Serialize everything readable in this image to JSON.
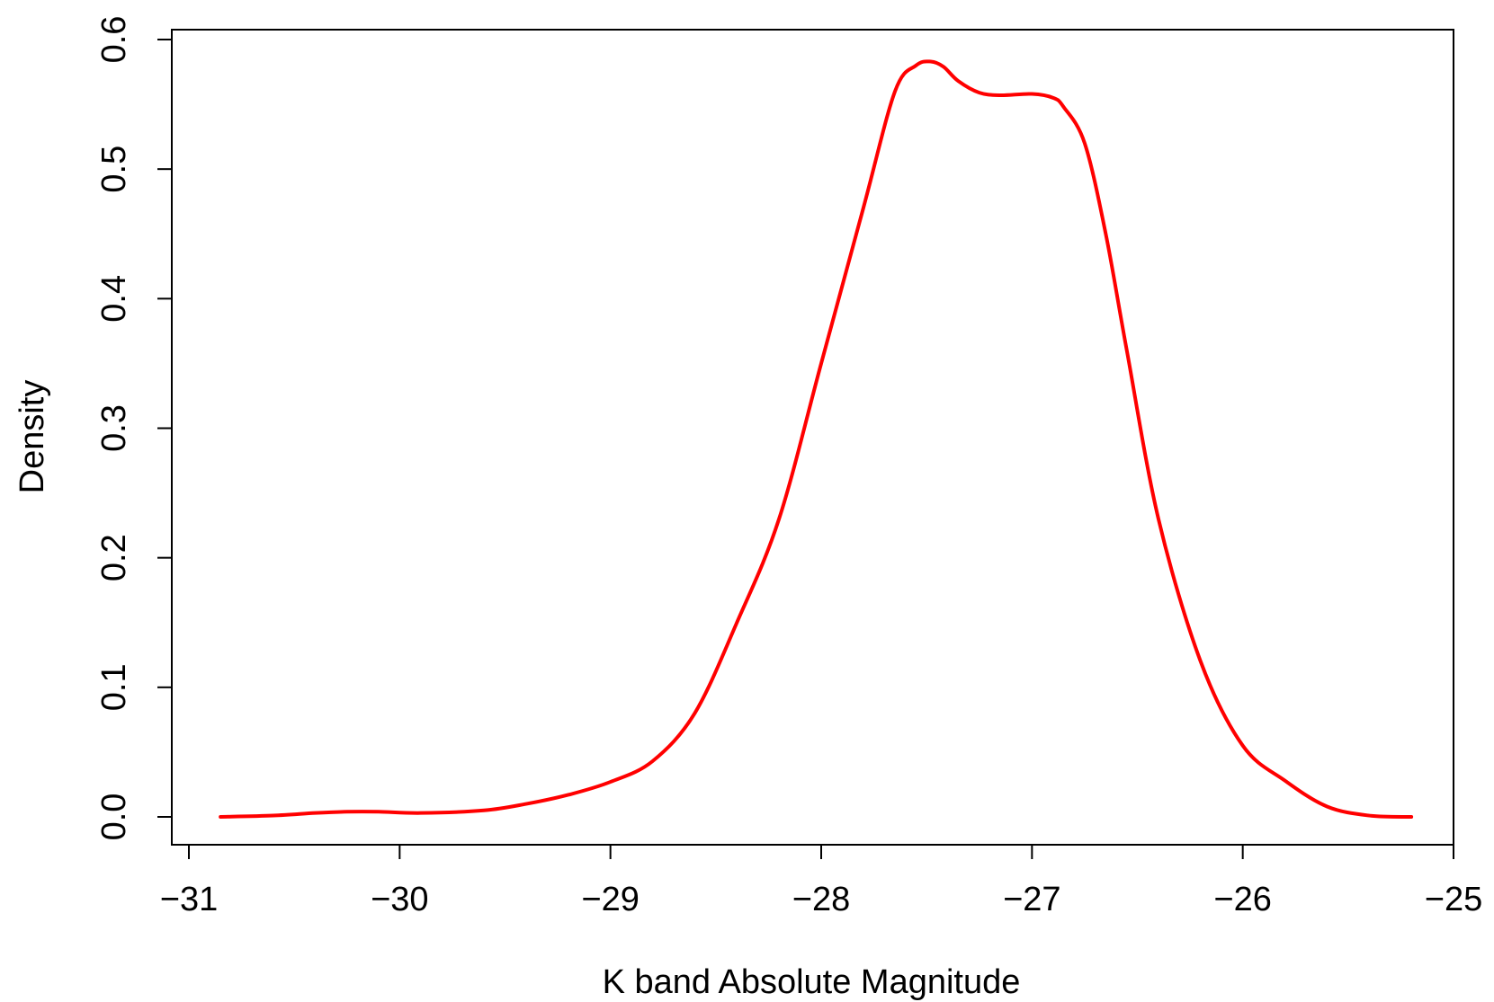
{
  "chart_data": {
    "type": "line",
    "title": "",
    "xlabel": "K band Absolute Magnitude",
    "ylabel": "Density",
    "xlim": [
      -31,
      -25
    ],
    "ylim": [
      0,
      0.6
    ],
    "x_ticks": [
      -31,
      -30,
      -29,
      -28,
      -27,
      -26,
      -25
    ],
    "y_ticks": [
      0.0,
      0.1,
      0.2,
      0.3,
      0.4,
      0.5,
      0.6
    ],
    "x_tick_labels": [
      "−31",
      "−30",
      "−29",
      "−28",
      "−27",
      "−26",
      "−25"
    ],
    "y_tick_labels": [
      "0.0",
      "0.1",
      "0.2",
      "0.3",
      "0.4",
      "0.5",
      "0.6"
    ],
    "grid": false,
    "legend": "none",
    "series": [
      {
        "color": "#ff0000",
        "x": [
          -30.85,
          -30.6,
          -30.4,
          -30.25,
          -30.1,
          -29.9,
          -29.6,
          -29.4,
          -29.2,
          -29.0,
          -28.8,
          -28.6,
          -28.4,
          -28.2,
          -28.0,
          -27.8,
          -27.65,
          -27.55,
          -27.48,
          -27.42,
          -27.35,
          -27.25,
          -27.15,
          -27.0,
          -26.9,
          -26.85,
          -26.75,
          -26.65,
          -26.55,
          -26.4,
          -26.2,
          -26.0,
          -25.8,
          -25.6,
          -25.4,
          -25.2
        ],
        "y": [
          0.0,
          0.001,
          0.003,
          0.004,
          0.004,
          0.003,
          0.005,
          0.01,
          0.017,
          0.027,
          0.043,
          0.08,
          0.15,
          0.23,
          0.35,
          0.47,
          0.56,
          0.58,
          0.583,
          0.579,
          0.568,
          0.559,
          0.557,
          0.558,
          0.555,
          0.548,
          0.52,
          0.45,
          0.36,
          0.23,
          0.12,
          0.055,
          0.028,
          0.008,
          0.001,
          0.0
        ]
      }
    ]
  }
}
